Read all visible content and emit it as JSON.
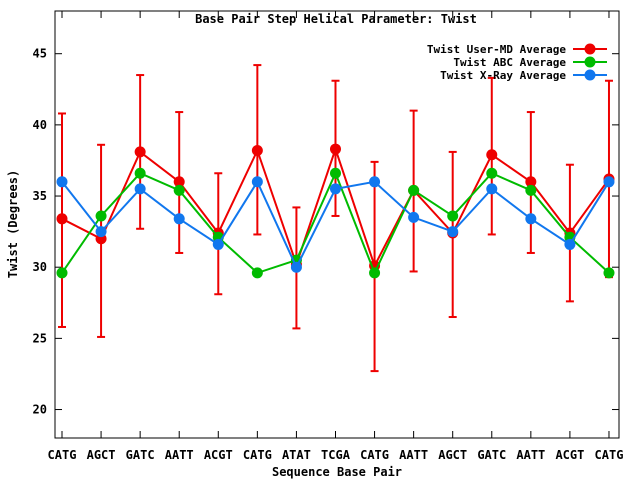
{
  "chart_data": {
    "type": "line",
    "title": "Base Pair Step Helical Parameter: Twist",
    "xlabel": "Sequence Base Pair",
    "ylabel": "Twist (Degrees)",
    "categories": [
      "CATG",
      "AGCT",
      "GATC",
      "AATT",
      "ACGT",
      "CATG",
      "ATAT",
      "TCGA",
      "CATG",
      "AATT",
      "AGCT",
      "GATC",
      "AATT",
      "ACGT",
      "CATG"
    ],
    "ylim": [
      18,
      48
    ],
    "yticks": [
      20,
      25,
      30,
      35,
      40,
      45
    ],
    "legend_position": "top-right",
    "grid": false,
    "series": [
      {
        "name": "Twist User-MD Average",
        "color": "#ee0000",
        "values": [
          33.4,
          32.0,
          38.1,
          36.0,
          32.4,
          38.2,
          30.2,
          38.3,
          30.1,
          35.4,
          32.4,
          37.9,
          36.0,
          32.4,
          36.2
        ],
        "err_low": [
          25.8,
          25.1,
          32.7,
          31.0,
          28.1,
          32.3,
          25.7,
          33.6,
          22.7,
          29.7,
          26.5,
          32.3,
          31.0,
          27.6,
          29.3
        ],
        "err_high": [
          40.8,
          38.6,
          43.5,
          40.9,
          36.6,
          44.2,
          34.2,
          43.1,
          37.4,
          41.0,
          38.1,
          43.3,
          40.9,
          37.2,
          43.1
        ]
      },
      {
        "name": "Twist ABC Average",
        "color": "#00bb00",
        "values": [
          29.6,
          33.6,
          36.6,
          35.4,
          32.1,
          29.6,
          30.5,
          36.6,
          29.6,
          35.4,
          33.6,
          36.6,
          35.4,
          32.1,
          29.6
        ]
      },
      {
        "name": "Twist X-Ray Average",
        "color": "#1177ee",
        "values": [
          36.0,
          32.5,
          35.5,
          33.4,
          31.6,
          36.0,
          30.0,
          35.5,
          36.0,
          33.5,
          32.5,
          35.5,
          33.4,
          31.6,
          36.0
        ]
      }
    ]
  }
}
